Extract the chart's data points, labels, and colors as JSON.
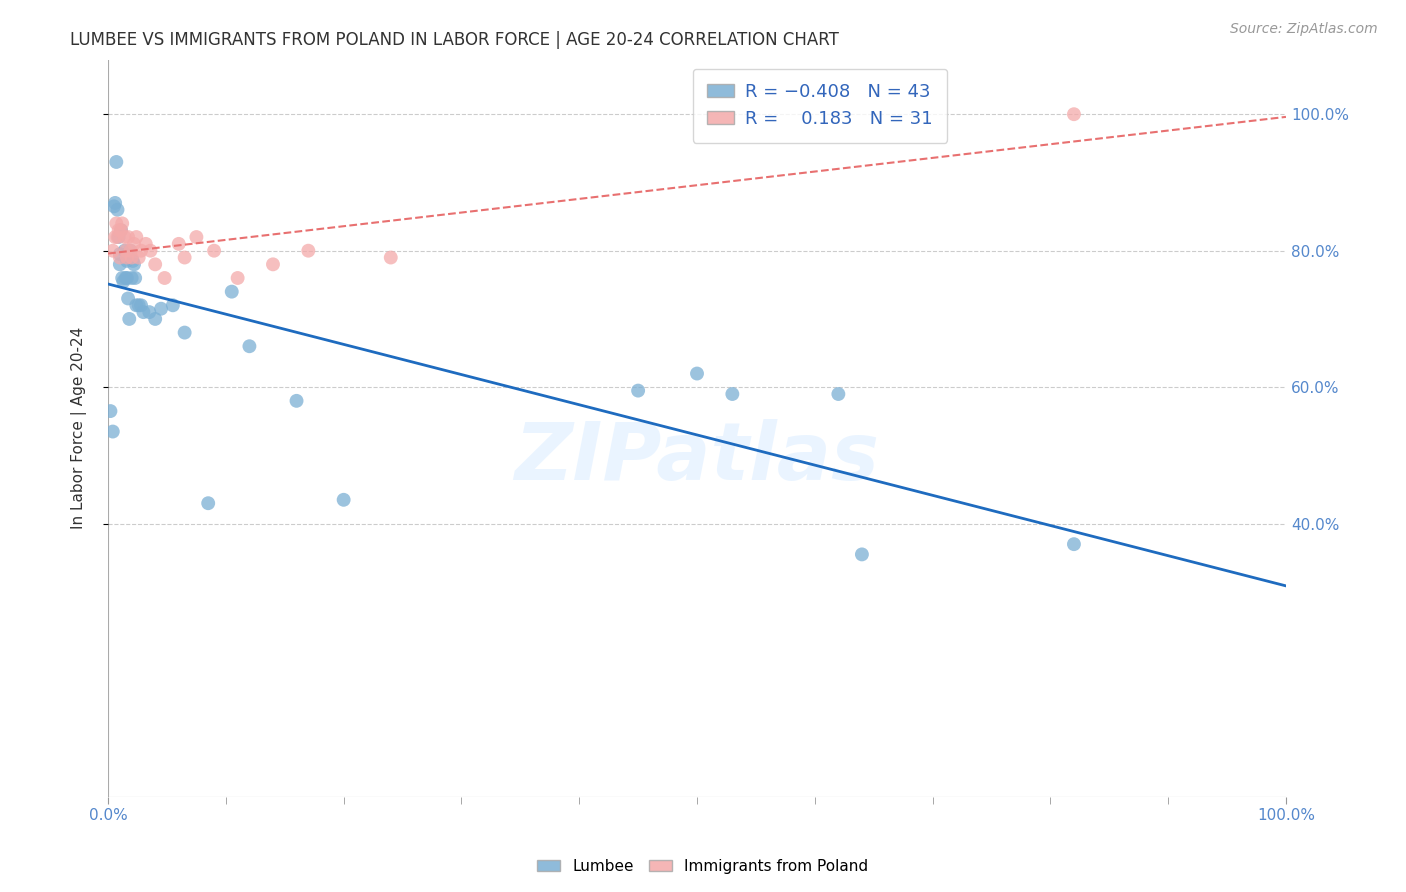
{
  "title": "LUMBEE VS IMMIGRANTS FROM POLAND IN LABOR FORCE | AGE 20-24 CORRELATION CHART",
  "source": "Source: ZipAtlas.com",
  "ylabel": "In Labor Force | Age 20-24",
  "xlim": [
    0,
    1.0
  ],
  "ylim": [
    0.0,
    1.08
  ],
  "yticks": [
    0.4,
    0.6,
    0.8,
    1.0
  ],
  "yticklabels_right": [
    "40.0%",
    "60.0%",
    "80.0%",
    "100.0%"
  ],
  "lumbee_color": "#7BAFD4",
  "poland_color": "#F4AAAA",
  "lumbee_line_color": "#1E6BBF",
  "poland_line_color": "#E87070",
  "watermark": "ZIPatlas",
  "lumbee_x": [
    0.002,
    0.004,
    0.005,
    0.006,
    0.007,
    0.008,
    0.009,
    0.01,
    0.01,
    0.011,
    0.012,
    0.013,
    0.014,
    0.015,
    0.016,
    0.016,
    0.017,
    0.018,
    0.019,
    0.02,
    0.021,
    0.022,
    0.023,
    0.024,
    0.026,
    0.028,
    0.03,
    0.035,
    0.04,
    0.045,
    0.055,
    0.065,
    0.085,
    0.105,
    0.12,
    0.16,
    0.2,
    0.45,
    0.53,
    0.62,
    0.64,
    0.82,
    0.5
  ],
  "lumbee_y": [
    0.565,
    0.535,
    0.865,
    0.87,
    0.93,
    0.86,
    0.82,
    0.795,
    0.78,
    0.83,
    0.76,
    0.755,
    0.8,
    0.76,
    0.785,
    0.76,
    0.73,
    0.7,
    0.8,
    0.76,
    0.785,
    0.78,
    0.76,
    0.72,
    0.72,
    0.72,
    0.71,
    0.71,
    0.7,
    0.715,
    0.72,
    0.68,
    0.43,
    0.74,
    0.66,
    0.58,
    0.435,
    0.595,
    0.59,
    0.59,
    0.355,
    0.37,
    0.62
  ],
  "poland_x": [
    0.004,
    0.006,
    0.007,
    0.008,
    0.009,
    0.01,
    0.011,
    0.012,
    0.014,
    0.015,
    0.016,
    0.017,
    0.019,
    0.02,
    0.022,
    0.024,
    0.026,
    0.028,
    0.032,
    0.036,
    0.04,
    0.048,
    0.06,
    0.065,
    0.075,
    0.09,
    0.11,
    0.14,
    0.17,
    0.24,
    0.82
  ],
  "poland_y": [
    0.8,
    0.82,
    0.84,
    0.82,
    0.83,
    0.79,
    0.83,
    0.84,
    0.82,
    0.8,
    0.79,
    0.82,
    0.8,
    0.79,
    0.81,
    0.82,
    0.79,
    0.8,
    0.81,
    0.8,
    0.78,
    0.76,
    0.81,
    0.79,
    0.82,
    0.8,
    0.76,
    0.78,
    0.8,
    0.79,
    1.0
  ],
  "background_color": "#FFFFFF",
  "grid_color": "#CCCCCC"
}
